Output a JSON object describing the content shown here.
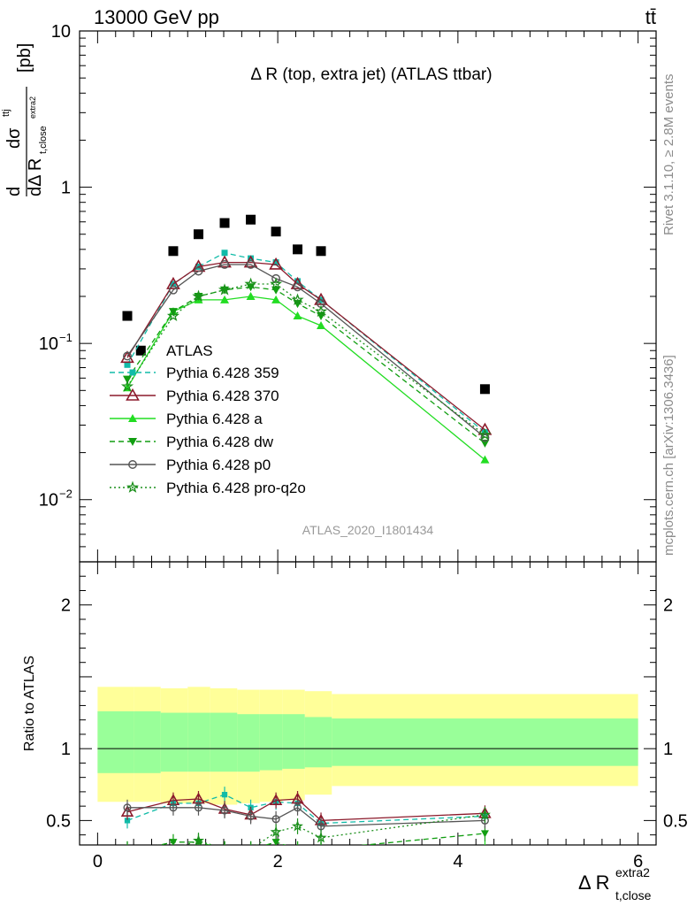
{
  "header": {
    "left": "13000 GeV pp",
    "right": "tt̄"
  },
  "main_title": "Δ R (top, extra jet) (ATLAS ttbar)",
  "side_right_top": "Rivet 3.1.10, ≥ 2.8M events",
  "side_right_bottom": "mcplots.cern.ch [arXiv:1306.3436]",
  "watermark": "ATLAS_2020_I1801434",
  "y_axis_label": "dσ^ttj / dΔ R t,close^extra2 [pb]",
  "x_axis_label": "Δ R t,close^extra2",
  "ratio_label": "Ratio to ATLAS",
  "colors": {
    "data": "#000000",
    "p359": "#11bba8",
    "p370": "#8b1a2b",
    "pa": "#22dd22",
    "pdw": "#119e11",
    "pp0": "#555555",
    "pq2o": "#1b8f1b",
    "band_outer": "#ffff99",
    "band_inner": "#99ff99"
  },
  "chart_data": {
    "type": "scatter",
    "xlim": [
      -0.2,
      6.2
    ],
    "main_ylim": [
      0.004,
      10
    ],
    "main_yscale": "log",
    "ratio_ylim": [
      0.33,
      2.3
    ],
    "x_ticks": [
      0,
      2,
      4,
      6
    ],
    "main_y_ticks": [
      {
        "v": 10,
        "t": "10",
        "e": ""
      },
      {
        "v": 1,
        "t": "1",
        "e": ""
      },
      {
        "v": 0.1,
        "t": "10",
        "e": "−1"
      },
      {
        "v": 0.01,
        "t": "10",
        "e": "−2"
      }
    ],
    "ratio_y_ticks": [
      0.5,
      1,
      2
    ],
    "bins": [
      [
        0.0,
        0.4
      ],
      [
        0.4,
        0.7
      ],
      [
        0.7,
        1.0
      ],
      [
        1.0,
        1.25
      ],
      [
        1.25,
        1.55
      ],
      [
        1.55,
        1.8
      ],
      [
        1.8,
        2.05
      ],
      [
        2.05,
        2.3
      ],
      [
        2.3,
        2.6
      ],
      [
        2.6,
        6.0
      ]
    ],
    "band_outer": [
      [
        0.63,
        1.43
      ],
      [
        0.63,
        1.43
      ],
      [
        0.62,
        1.42
      ],
      [
        0.62,
        1.43
      ],
      [
        0.61,
        1.42
      ],
      [
        0.62,
        1.41
      ],
      [
        0.63,
        1.41
      ],
      [
        0.64,
        1.41
      ],
      [
        0.68,
        1.4
      ],
      [
        0.74,
        1.38
      ]
    ],
    "band_inner": [
      [
        0.83,
        1.26
      ],
      [
        0.83,
        1.26
      ],
      [
        0.84,
        1.25
      ],
      [
        0.84,
        1.25
      ],
      [
        0.84,
        1.25
      ],
      [
        0.84,
        1.24
      ],
      [
        0.85,
        1.24
      ],
      [
        0.86,
        1.24
      ],
      [
        0.87,
        1.22
      ],
      [
        0.88,
        1.21
      ]
    ],
    "data": {
      "name": "ATLAS",
      "x": [
        0.33,
        0.48,
        0.84,
        1.12,
        1.41,
        1.7,
        1.98,
        2.22,
        2.48,
        4.3
      ],
      "y": [
        0.15,
        0.09,
        0.39,
        0.5,
        0.59,
        0.62,
        0.52,
        0.4,
        0.39,
        0.051
      ]
    },
    "series": [
      {
        "name": "Pythia 6.428 359",
        "key": "p359",
        "x": [
          0.33,
          0.84,
          1.12,
          1.41,
          1.7,
          1.98,
          2.22,
          2.48,
          4.3
        ],
        "y": [
          0.073,
          0.24,
          0.31,
          0.38,
          0.35,
          0.33,
          0.25,
          0.19,
          0.027
        ],
        "ratio": [
          0.5,
          0.62,
          0.62,
          0.68,
          0.59,
          0.63,
          0.62,
          0.48,
          0.53
        ]
      },
      {
        "name": "Pythia 6.428 370",
        "key": "p370",
        "x": [
          0.33,
          0.84,
          1.12,
          1.41,
          1.7,
          1.98,
          2.22,
          2.48,
          4.3
        ],
        "y": [
          0.081,
          0.24,
          0.31,
          0.33,
          0.33,
          0.32,
          0.24,
          0.19,
          0.028
        ],
        "ratio": [
          0.56,
          0.64,
          0.65,
          0.58,
          0.54,
          0.64,
          0.65,
          0.5,
          0.55
        ]
      },
      {
        "name": "Pythia 6.428 a",
        "key": "pa",
        "x": [
          0.33,
          0.84,
          1.12,
          1.41,
          1.7,
          1.98,
          2.22,
          2.48,
          4.3
        ],
        "y": [
          0.052,
          0.16,
          0.19,
          0.19,
          0.2,
          0.19,
          0.15,
          0.13,
          0.018
        ],
        "ratio": [
          0.3,
          0.3,
          0.3,
          0.3,
          0.3,
          0.3,
          0.3,
          0.3,
          0.3
        ]
      },
      {
        "name": "Pythia 6.428 dw",
        "key": "pdw",
        "x": [
          0.33,
          0.84,
          1.12,
          1.41,
          1.7,
          1.98,
          2.22,
          2.48,
          4.3
        ],
        "y": [
          0.059,
          0.16,
          0.2,
          0.22,
          0.23,
          0.22,
          0.18,
          0.15,
          0.023
        ],
        "ratio": [
          0.28,
          0.35,
          0.35,
          0.3,
          0.3,
          0.35,
          0.3,
          0.3,
          0.41
        ]
      },
      {
        "name": "Pythia 6.428 p0",
        "key": "pp0",
        "x": [
          0.33,
          0.84,
          1.12,
          1.41,
          1.7,
          1.98,
          2.22,
          2.48,
          4.3
        ],
        "y": [
          0.083,
          0.22,
          0.29,
          0.32,
          0.32,
          0.26,
          0.23,
          0.18,
          0.025
        ],
        "ratio": [
          0.59,
          0.59,
          0.59,
          0.57,
          0.53,
          0.51,
          0.59,
          0.46,
          0.5
        ]
      },
      {
        "name": "Pythia 6.428 pro-q2o",
        "key": "pq2o",
        "x": [
          0.33,
          0.84,
          1.12,
          1.41,
          1.7,
          1.98,
          2.22,
          2.48,
          4.3
        ],
        "y": [
          0.053,
          0.15,
          0.2,
          0.22,
          0.24,
          0.24,
          0.19,
          0.16,
          0.026
        ],
        "ratio": [
          0.3,
          0.3,
          0.36,
          0.3,
          0.3,
          0.42,
          0.46,
          0.38,
          0.54
        ]
      }
    ]
  }
}
